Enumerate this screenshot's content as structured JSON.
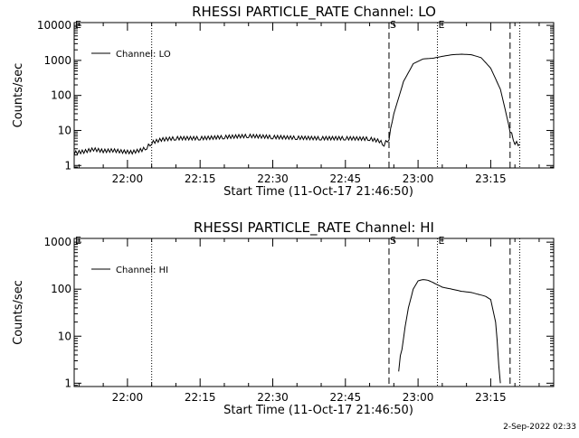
{
  "footer": {
    "timestamp": "2-Sep-2022 02:33"
  },
  "chart_data": [
    {
      "type": "line",
      "title": "RHESSI PARTICLE_RATE Channel: LO",
      "xlabel": "Start Time (11-Oct-17 21:46:50)",
      "ylabel": "Counts/sec",
      "yscale": "log",
      "xlim": [
        "21:49",
        "23:28"
      ],
      "ylim": [
        0.85,
        12000
      ],
      "xticks": [
        "22:00",
        "22:15",
        "22:30",
        "22:45",
        "23:00",
        "23:15"
      ],
      "yticks": [
        {
          "value": 1,
          "label": "1"
        },
        {
          "value": 10,
          "label": "10"
        },
        {
          "value": 100,
          "label": "100"
        },
        {
          "value": 1000,
          "label": "1000"
        },
        {
          "value": 10000,
          "label": "10000"
        }
      ],
      "legend": {
        "entry": "Channel: LO",
        "position": "top-left"
      },
      "markers": [
        {
          "time": "21:49",
          "style": "dotted",
          "label": "E"
        },
        {
          "time": "22:05",
          "style": "dotted",
          "label": ""
        },
        {
          "time": "22:54",
          "style": "dashed",
          "label": "S"
        },
        {
          "time": "23:04",
          "style": "dotted",
          "label": "E"
        },
        {
          "time": "23:19",
          "style": "dashed",
          "label": ""
        },
        {
          "time": "23:21",
          "style": "dotted",
          "label": ""
        }
      ],
      "series": [
        {
          "x": [
            "21:49",
            "21:51",
            "21:53",
            "21:55",
            "21:57",
            "21:59",
            "22:01",
            "22:03",
            "22:04",
            "22:05",
            "22:07",
            "22:10",
            "22:15",
            "22:20",
            "22:25",
            "22:30",
            "22:35",
            "22:40",
            "22:45",
            "22:50",
            "22:52",
            "22:53",
            "22:54",
            "22:55",
            "22:57",
            "22:59",
            "23:01",
            "23:03",
            "23:05",
            "23:07",
            "23:09",
            "23:11",
            "23:13",
            "23:15",
            "23:17",
            "23:19",
            "23:20",
            "23:21"
          ],
          "y": [
            2.3,
            2.5,
            2.9,
            2.6,
            2.7,
            2.5,
            2.4,
            2.8,
            3.3,
            4.5,
            5.5,
            6,
            6,
            6.5,
            7,
            6.5,
            6.2,
            6,
            6,
            5.8,
            5,
            4,
            6,
            30,
            250,
            800,
            1100,
            1150,
            1300,
            1450,
            1500,
            1450,
            1200,
            600,
            150,
            10,
            4.5,
            4
          ]
        }
      ]
    },
    {
      "type": "line",
      "title": "RHESSI PARTICLE_RATE Channel: HI",
      "xlabel": "Start Time (11-Oct-17 21:46:50)",
      "ylabel": "Counts/sec",
      "yscale": "log",
      "xlim": [
        "21:49",
        "23:28"
      ],
      "ylim": [
        0.85,
        1200
      ],
      "xticks": [
        "22:00",
        "22:15",
        "22:30",
        "22:45",
        "23:00",
        "23:15"
      ],
      "yticks": [
        {
          "value": 1,
          "label": "1"
        },
        {
          "value": 10,
          "label": "10"
        },
        {
          "value": 100,
          "label": "100"
        },
        {
          "value": 1000,
          "label": "1000"
        }
      ],
      "legend": {
        "entry": "Channel: HI",
        "position": "top-left"
      },
      "markers": [
        {
          "time": "21:49",
          "style": "dotted",
          "label": "E"
        },
        {
          "time": "22:05",
          "style": "dotted",
          "label": ""
        },
        {
          "time": "22:54",
          "style": "dashed",
          "label": "S"
        },
        {
          "time": "23:04",
          "style": "dotted",
          "label": "E"
        },
        {
          "time": "23:19",
          "style": "dashed",
          "label": ""
        },
        {
          "time": "23:21",
          "style": "dotted",
          "label": ""
        }
      ],
      "series": [
        {
          "x": [
            "22:56",
            "22:57",
            "22:58",
            "22:59",
            "23:00",
            "23:01",
            "23:02",
            "23:03",
            "23:05",
            "23:07",
            "23:09",
            "23:11",
            "23:13",
            "23:14",
            "23:15",
            "23:16",
            "23:17"
          ],
          "y": [
            2,
            10,
            40,
            100,
            150,
            160,
            155,
            140,
            110,
            100,
            90,
            85,
            75,
            70,
            60,
            20,
            1
          ]
        }
      ]
    }
  ]
}
